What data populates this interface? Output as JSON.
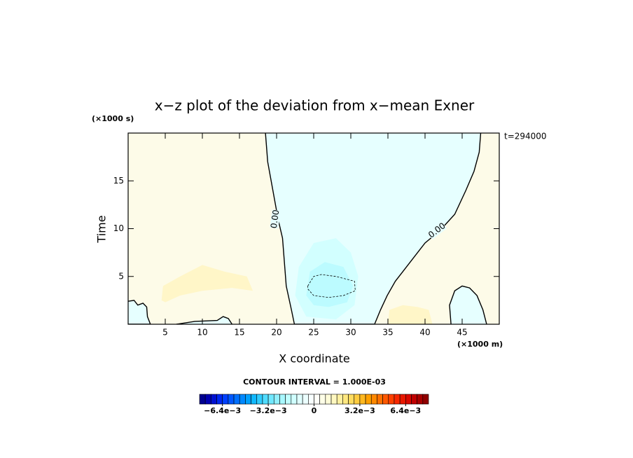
{
  "chart_data": {
    "type": "contour",
    "title": "x−z plot of the deviation from x−mean Exner",
    "x_label": "X coordinate",
    "y_label": "Time",
    "x_unit": "(×1000 m)",
    "y_unit": "(×1000 s)",
    "annotation": "t=294000",
    "xlim": [
      0,
      50
    ],
    "ylim": [
      0,
      20
    ],
    "xticks": [
      5,
      10,
      15,
      20,
      25,
      30,
      35,
      40,
      45
    ],
    "yticks": [
      5,
      10,
      15
    ],
    "background": "#fdfbe8",
    "regions": [
      {
        "color": "#e6ffff",
        "line": "solid",
        "labels": [
          "0.00",
          "0.00"
        ],
        "x": [
          18.5,
          18.8,
          19.5,
          20.2,
          20.8,
          21,
          21.3,
          22,
          22.4,
          33.2,
          34,
          34.9,
          36,
          37,
          38.5,
          40,
          42,
          44,
          45.5,
          46.6,
          47.3,
          47.5
        ],
        "y": [
          20,
          17,
          14,
          11,
          9,
          7,
          4,
          1.5,
          0,
          0,
          1.5,
          3,
          4.5,
          5.5,
          7,
          8.5,
          9.8,
          11.5,
          14,
          16,
          18,
          20
        ]
      },
      {
        "color": "#d2ffff",
        "x": [
          22.5,
          23,
          25,
          28,
          30,
          31,
          30.5,
          28,
          24
        ],
        "y": [
          3,
          6,
          8.5,
          9,
          7.5,
          5,
          2,
          0.5,
          0.8
        ]
      },
      {
        "color": "#bcfbff",
        "x": [
          24,
          24.5,
          26.5,
          29,
          30.3,
          29.5,
          27,
          25
        ],
        "y": [
          3,
          5.5,
          6.5,
          6,
          4,
          2.3,
          1.8,
          2
        ]
      },
      {
        "color": "#fff6c8",
        "x": [
          4.5,
          4.7,
          7,
          10,
          13,
          16,
          16.8,
          14,
          10,
          7,
          5
        ],
        "y": [
          2.5,
          4,
          5,
          6.2,
          5.5,
          5,
          3.5,
          3.8,
          3.5,
          3,
          2.3
        ]
      },
      {
        "color": "#fff6c8",
        "x": [
          35,
          35.2,
          37,
          39,
          40.5,
          41
        ],
        "y": [
          0,
          1.5,
          2,
          1.8,
          1.5,
          0
        ]
      },
      {
        "color": "#e6ffff",
        "line": "solid",
        "x": [
          0,
          0.8,
          1.3,
          2,
          2.5,
          2.6,
          3,
          0
        ],
        "y": [
          2.4,
          2.5,
          2,
          2.2,
          1.8,
          0.8,
          0,
          0
        ]
      },
      {
        "color": "#e6ffff",
        "line": "solid",
        "x": [
          6.5,
          9,
          12,
          12.8,
          13.5,
          14
        ],
        "y": [
          0,
          0.3,
          0.4,
          0.8,
          0.6,
          0
        ]
      },
      {
        "color": "#e6ffff",
        "line": "solid",
        "x": [
          43.5,
          43.3,
          44,
          45,
          46,
          47,
          47.8,
          48.3
        ],
        "y": [
          0,
          2,
          3.5,
          4,
          3.8,
          3,
          1.5,
          0
        ]
      },
      {
        "line": "dashed",
        "x": [
          24.2,
          25,
          26,
          28,
          30.5,
          30.6,
          29,
          27,
          25,
          24.2,
          24.2
        ],
        "y": [
          4,
          5,
          5.2,
          5,
          4.5,
          3.5,
          3,
          2.8,
          3,
          3.7,
          4
        ]
      }
    ],
    "colorbar": {
      "title": "CONTOUR INTERVAL = 1.000E-03",
      "lim": [
        -0.008,
        0.008
      ],
      "ticks": [
        {
          "value": -0.0064,
          "label": "−6.4e−3"
        },
        {
          "value": -0.0032,
          "label": "−3.2e−3"
        },
        0,
        {
          "value": 0.0032,
          "label": "3.2e−3"
        },
        {
          "value": 0.0064,
          "label": "6.4e−3"
        }
      ],
      "colors": [
        "#000090",
        "#0000b0",
        "#0010d0",
        "#0028f0",
        "#0040ff",
        "#0058ff",
        "#0070ff",
        "#0088ff",
        "#00a0ff",
        "#10b8ff",
        "#30ccff",
        "#50dcff",
        "#70e8ff",
        "#90f0ff",
        "#a8f8ff",
        "#c0ffff",
        "#d0ffff",
        "#e0ffff",
        "#ecffff",
        "#f8ffff",
        "#fffff8",
        "#ffffe8",
        "#fffcd8",
        "#fff8c0",
        "#fff0a0",
        "#ffe880",
        "#ffdc60",
        "#ffcc40",
        "#ffb820",
        "#ffa000",
        "#ff8800",
        "#ff7000",
        "#ff5800",
        "#ff4000",
        "#f82800",
        "#e81800",
        "#d80800",
        "#c00000",
        "#a80000",
        "#900000"
      ]
    }
  }
}
